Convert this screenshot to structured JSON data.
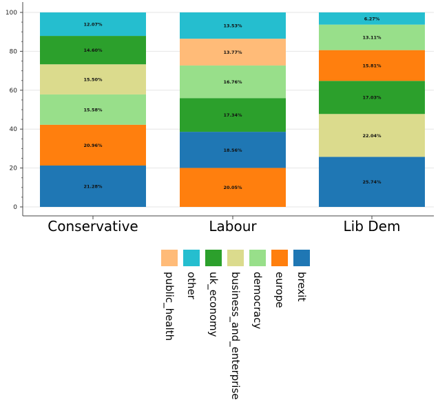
{
  "chart_data": {
    "type": "bar",
    "stacked": true,
    "categories": [
      "Conservative",
      "Labour",
      "Lib Dem"
    ],
    "ylim": [
      0,
      100
    ],
    "yticks": [
      0,
      20,
      40,
      60,
      80,
      100
    ],
    "grid": true,
    "legend_position": "bottom",
    "stacks": [
      {
        "category": "Conservative",
        "segments": [
          {
            "topic": "brexit",
            "value": 21.28,
            "label": "21.28%"
          },
          {
            "topic": "europe",
            "value": 20.96,
            "label": "20.96%"
          },
          {
            "topic": "democracy",
            "value": 15.58,
            "label": "15.58%"
          },
          {
            "topic": "business_and_enterprise",
            "value": 15.5,
            "label": "15.50%"
          },
          {
            "topic": "uk_economy",
            "value": 14.6,
            "label": "14.60%"
          },
          {
            "topic": "other",
            "value": 12.07,
            "label": "12.07%"
          }
        ]
      },
      {
        "category": "Labour",
        "segments": [
          {
            "topic": "europe",
            "value": 20.05,
            "label": "20.05%"
          },
          {
            "topic": "brexit",
            "value": 18.56,
            "label": "18.56%"
          },
          {
            "topic": "uk_economy",
            "value": 17.34,
            "label": "17.34%"
          },
          {
            "topic": "democracy",
            "value": 16.76,
            "label": "16.76%"
          },
          {
            "topic": "public_health",
            "value": 13.77,
            "label": "13.77%"
          },
          {
            "topic": "other",
            "value": 13.53,
            "label": "13.53%"
          }
        ]
      },
      {
        "category": "Lib Dem",
        "segments": [
          {
            "topic": "brexit",
            "value": 25.74,
            "label": "25.74%"
          },
          {
            "topic": "business_and_enterprise",
            "value": 22.04,
            "label": "22.04%"
          },
          {
            "topic": "uk_economy",
            "value": 17.03,
            "label": "17.03%"
          },
          {
            "topic": "europe",
            "value": 15.81,
            "label": "15.81%"
          },
          {
            "topic": "democracy",
            "value": 13.11,
            "label": "13.11%"
          },
          {
            "topic": "other",
            "value": 6.27,
            "label": "6.27%"
          }
        ]
      }
    ],
    "legend": [
      {
        "name": "public_health",
        "color": "#ffbb78"
      },
      {
        "name": "other",
        "color": "#25becf"
      },
      {
        "name": "uk_economy",
        "color": "#2ca02c"
      },
      {
        "name": "business_and_enterprise",
        "color": "#dbdb8d"
      },
      {
        "name": "democracy",
        "color": "#98df8a"
      },
      {
        "name": "europe",
        "color": "#ff7f0e"
      },
      {
        "name": "brexit",
        "color": "#1f77b4"
      }
    ]
  }
}
